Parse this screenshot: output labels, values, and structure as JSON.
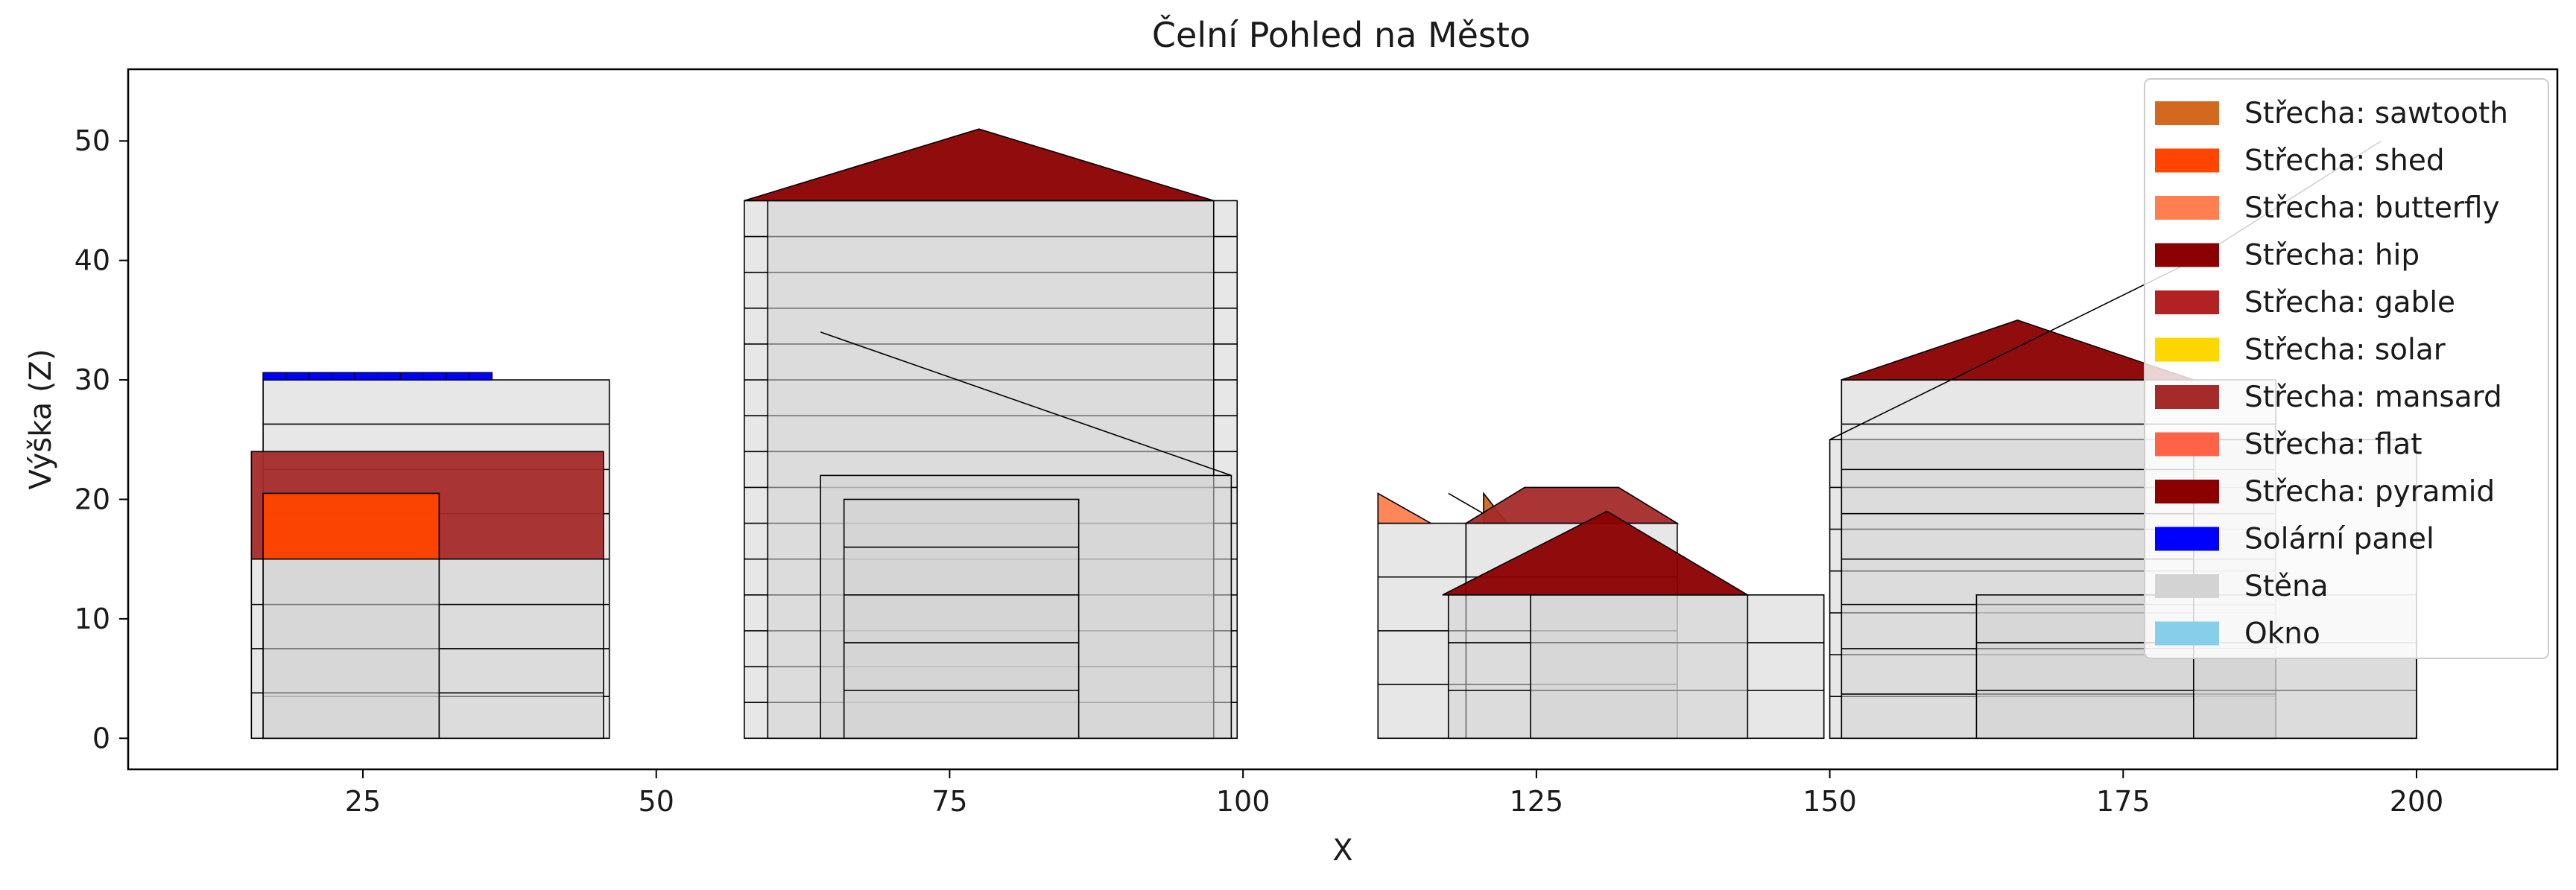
{
  "chart_data": {
    "type": "area",
    "title": "Čelní Pohled na Město",
    "xlabel": "X",
    "ylabel": "Výška (Z)",
    "xlim": [
      5,
      212
    ],
    "ylim": [
      -2.6,
      56
    ],
    "xticks": [
      25,
      50,
      75,
      100,
      125,
      150,
      175,
      200
    ],
    "yticks": [
      0,
      10,
      20,
      30,
      40,
      50
    ],
    "grid": false,
    "legend_position": "top-right",
    "legend": [
      {
        "label": "Střecha: sawtooth",
        "color": "#D2691E"
      },
      {
        "label": "Střecha: shed",
        "color": "#FF4500"
      },
      {
        "label": "Střecha: butterfly",
        "color": "#FF7F50"
      },
      {
        "label": "Střecha: hip",
        "color": "#8B0000"
      },
      {
        "label": "Střecha: gable",
        "color": "#B22222"
      },
      {
        "label": "Střecha: solar",
        "color": "#FFD700"
      },
      {
        "label": "Střecha: mansard",
        "color": "#A52A2A"
      },
      {
        "label": "Střecha: flat",
        "color": "#FF6347"
      },
      {
        "label": "Střecha: pyramid",
        "color": "#8B0000"
      },
      {
        "label": "Solární panel",
        "color": "#0000FF"
      },
      {
        "label": "Stěna",
        "color": "#D3D3D3"
      },
      {
        "label": "Okno",
        "color": "#87CEEB"
      }
    ],
    "buildings": [
      {
        "x": [
          16.5,
          46
        ],
        "height": 30,
        "floor_lines": [
          3.5,
          7.5,
          11.2,
          15,
          18.8,
          22.5,
          26.3
        ]
      },
      {
        "x": [
          15.5,
          45.5
        ],
        "height": 15,
        "floor_lines": [
          3.8,
          7.5,
          11.2
        ]
      },
      {
        "x": [
          16.5,
          31.5
        ],
        "height": 15
      },
      {
        "x": [
          57.5,
          99.5
        ],
        "height": 45,
        "floor_lines": [
          3,
          6,
          9,
          12,
          15,
          18,
          21,
          24,
          27,
          30,
          33,
          36,
          39,
          42
        ]
      },
      {
        "x": [
          59.5,
          97.5
        ],
        "height": 45
      },
      {
        "x": [
          64,
          99
        ],
        "height": 22
      },
      {
        "x": [
          66,
          86
        ],
        "height": 20,
        "floor_lines": [
          4,
          8,
          12,
          16
        ]
      },
      {
        "x": [
          111.5,
          119
        ],
        "height": 18,
        "floor_lines": [
          4.5,
          9,
          13.5
        ]
      },
      {
        "x": [
          119,
          137
        ],
        "height": 18,
        "floor_lines": [
          4.5,
          9,
          13.5
        ]
      },
      {
        "x": [
          117.5,
          149.5
        ],
        "height": 12,
        "floor_lines": [
          4,
          8
        ]
      },
      {
        "x": [
          124.5,
          143
        ],
        "height": 12
      },
      {
        "x": [
          150,
          188
        ],
        "height": 25,
        "floor_lines": [
          3.5,
          7,
          10.5,
          14,
          17.5,
          21
        ]
      },
      {
        "x": [
          151,
          188
        ],
        "height": 30,
        "floor_lines": [
          3.7,
          7.5,
          11.2,
          15,
          18.8,
          22.5,
          26.3
        ]
      },
      {
        "x": [
          162.5,
          200
        ],
        "height": 12,
        "floor_lines": [
          4,
          8
        ]
      },
      {
        "x": [
          181,
          200
        ],
        "height": 25
      }
    ],
    "roofs": [
      {
        "type": "mansard",
        "polygon": [
          [
            15.5,
            15
          ],
          [
            45.5,
            15
          ],
          [
            45.5,
            24
          ],
          [
            15.5,
            24
          ]
        ]
      },
      {
        "type": "shed",
        "polygon": [
          [
            16.5,
            15
          ],
          [
            31.5,
            15
          ],
          [
            31.5,
            20.5
          ],
          [
            16.5,
            20.5
          ]
        ]
      },
      {
        "type": "solar",
        "polygon": [
          [
            16.5,
            30
          ],
          [
            36,
            30
          ],
          [
            36,
            30.6
          ],
          [
            16.5,
            30.6
          ]
        ]
      },
      {
        "type": "hip",
        "polygon": [
          [
            57.5,
            45
          ],
          [
            77.5,
            51
          ],
          [
            97.5,
            45
          ]
        ]
      },
      {
        "type": "butterfly",
        "polygon": [
          [
            111.5,
            18
          ],
          [
            111.5,
            20.5
          ],
          [
            116,
            18
          ]
        ]
      },
      {
        "type": "sawtooth",
        "polygon": [
          [
            120.5,
            18
          ],
          [
            120.5,
            20.5
          ],
          [
            122.5,
            18
          ]
        ]
      },
      {
        "type": "mansard",
        "polygon": [
          [
            119,
            18
          ],
          [
            137,
            18
          ],
          [
            132,
            21
          ],
          [
            124,
            21
          ]
        ]
      },
      {
        "type": "hip",
        "polygon": [
          [
            117,
            12
          ],
          [
            131,
            19
          ],
          [
            143,
            12
          ]
        ]
      },
      {
        "type": "hip",
        "polygon": [
          [
            151,
            30
          ],
          [
            166,
            35
          ],
          [
            181,
            30
          ]
        ]
      }
    ],
    "solar_panels": [
      {
        "x": [
          16.5,
          36
        ],
        "z": [
          30,
          30.6
        ],
        "cells": 10
      }
    ],
    "lines": [
      [
        [
          64,
          34
        ],
        [
          99,
          22
        ]
      ],
      [
        [
          150,
          25
        ],
        [
          181,
          40
        ],
        [
          197,
          50
        ]
      ],
      [
        [
          117.5,
          20.5
        ],
        [
          120.5,
          18.8
        ]
      ]
    ]
  }
}
